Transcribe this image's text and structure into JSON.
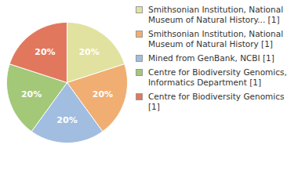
{
  "chart_data": {
    "type": "pie",
    "categories": [
      "Smithsonian Institution, National Museum of Natural History... [1]",
      "Smithsonian Institution, National Museum of Natural History [1]",
      "Mined from GenBank, NCBI [1]",
      "Centre for Biodiversity Genomics, Informatics Department [1]",
      "Centre for Biodiversity Genomics [1]"
    ],
    "values": [
      20,
      20,
      20,
      20,
      20
    ],
    "value_labels": [
      "20%",
      "20%",
      "20%",
      "20%",
      "20%"
    ],
    "colors": [
      "#e1e29f",
      "#f0ae72",
      "#a1bde0",
      "#a2c878",
      "#e1785e"
    ],
    "data_labels": true,
    "legend": "right"
  }
}
